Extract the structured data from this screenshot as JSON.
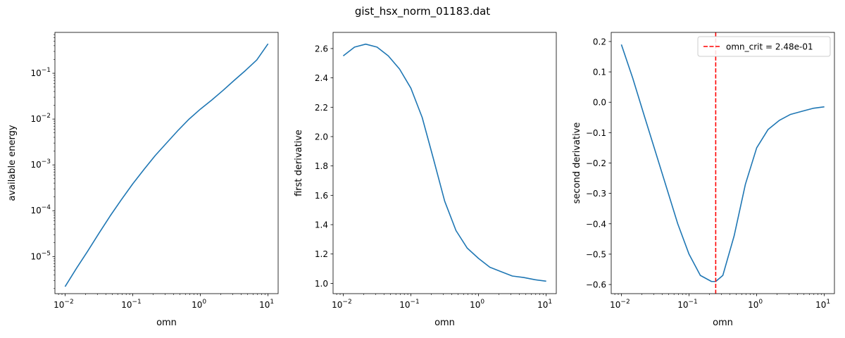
{
  "figure": {
    "suptitle": "gist_hsx_norm_01183.dat"
  },
  "chart_data": [
    {
      "type": "line",
      "xlabel": "omn",
      "ylabel": "available energy",
      "xscale": "log",
      "yscale": "log",
      "xlim": [
        0.00708,
        14.1
      ],
      "ylim": [
        1.55e-06,
        0.78
      ],
      "xticks": [
        {
          "value": 0.01,
          "base": "10",
          "exp": "−2"
        },
        {
          "value": 0.1,
          "base": "10",
          "exp": "−1"
        },
        {
          "value": 1,
          "base": "10",
          "exp": "0"
        },
        {
          "value": 10,
          "base": "10",
          "exp": "1"
        }
      ],
      "yticks": [
        {
          "value": 1e-05,
          "base": "10",
          "exp": "−5"
        },
        {
          "value": 0.0001,
          "base": "10",
          "exp": "−4"
        },
        {
          "value": 0.001,
          "base": "10",
          "exp": "−3"
        },
        {
          "value": 0.01,
          "base": "10",
          "exp": "−2"
        },
        {
          "value": 0.1,
          "base": "10",
          "exp": "−1"
        }
      ],
      "series": [
        {
          "color": "#1f77b4",
          "x": [
            0.01,
            0.0147,
            0.0215,
            0.0316,
            0.0464,
            0.0681,
            0.1,
            0.147,
            0.215,
            0.316,
            0.464,
            0.681,
            1.0,
            1.47,
            2.15,
            3.16,
            4.64,
            6.81,
            10.0
          ],
          "y": [
            2.2e-06,
            5.5e-06,
            1.3e-05,
            3.2e-05,
            7.7e-05,
            0.000175,
            0.000385,
            0.0008,
            0.0016,
            0.003,
            0.0056,
            0.01,
            0.0165,
            0.026,
            0.042,
            0.07,
            0.115,
            0.195,
            0.44
          ]
        }
      ]
    },
    {
      "type": "line",
      "xlabel": "omn",
      "ylabel": "first derivative",
      "xscale": "log",
      "yscale": "linear",
      "xlim": [
        0.00708,
        14.1
      ],
      "ylim": [
        0.93,
        2.71
      ],
      "xticks": [
        {
          "value": 0.01,
          "base": "10",
          "exp": "−2"
        },
        {
          "value": 0.1,
          "base": "10",
          "exp": "−1"
        },
        {
          "value": 1,
          "base": "10",
          "exp": "0"
        },
        {
          "value": 10,
          "base": "10",
          "exp": "1"
        }
      ],
      "yticks": [
        {
          "value": 1.0,
          "label": "1.0"
        },
        {
          "value": 1.2,
          "label": "1.2"
        },
        {
          "value": 1.4,
          "label": "1.4"
        },
        {
          "value": 1.6,
          "label": "1.6"
        },
        {
          "value": 1.8,
          "label": "1.8"
        },
        {
          "value": 2.0,
          "label": "2.0"
        },
        {
          "value": 2.2,
          "label": "2.2"
        },
        {
          "value": 2.4,
          "label": "2.4"
        },
        {
          "value": 2.6,
          "label": "2.6"
        }
      ],
      "series": [
        {
          "color": "#1f77b4",
          "x": [
            0.01,
            0.0147,
            0.0215,
            0.0316,
            0.0464,
            0.0681,
            0.1,
            0.147,
            0.215,
            0.316,
            0.464,
            0.681,
            1.0,
            1.47,
            2.15,
            3.16,
            4.64,
            6.81,
            10.0
          ],
          "y": [
            2.55,
            2.61,
            2.63,
            2.61,
            2.55,
            2.46,
            2.33,
            2.13,
            1.85,
            1.56,
            1.36,
            1.24,
            1.17,
            1.11,
            1.08,
            1.05,
            1.04,
            1.025,
            1.015
          ]
        }
      ]
    },
    {
      "type": "line",
      "xlabel": "omn",
      "ylabel": "second derivative",
      "xscale": "log",
      "yscale": "linear",
      "xlim": [
        0.00708,
        14.1
      ],
      "ylim": [
        -0.63,
        0.23
      ],
      "xticks": [
        {
          "value": 0.01,
          "base": "10",
          "exp": "−2"
        },
        {
          "value": 0.1,
          "base": "10",
          "exp": "−1"
        },
        {
          "value": 1,
          "base": "10",
          "exp": "0"
        },
        {
          "value": 10,
          "base": "10",
          "exp": "1"
        }
      ],
      "yticks": [
        {
          "value": -0.6,
          "label": "−0.6"
        },
        {
          "value": -0.5,
          "label": "−0.5"
        },
        {
          "value": -0.4,
          "label": "−0.4"
        },
        {
          "value": -0.3,
          "label": "−0.3"
        },
        {
          "value": -0.2,
          "label": "−0.2"
        },
        {
          "value": -0.1,
          "label": "−0.1"
        },
        {
          "value": 0.0,
          "label": "0.0"
        },
        {
          "value": 0.1,
          "label": "0.1"
        },
        {
          "value": 0.2,
          "label": "0.2"
        }
      ],
      "series": [
        {
          "color": "#1f77b4",
          "x": [
            0.01,
            0.0147,
            0.0215,
            0.0316,
            0.0464,
            0.0681,
            0.1,
            0.147,
            0.215,
            0.248,
            0.316,
            0.464,
            0.681,
            1.0,
            1.47,
            2.15,
            3.16,
            4.64,
            6.81,
            10.0
          ],
          "y": [
            0.19,
            0.08,
            -0.04,
            -0.16,
            -0.28,
            -0.4,
            -0.5,
            -0.57,
            -0.59,
            -0.59,
            -0.57,
            -0.44,
            -0.27,
            -0.15,
            -0.09,
            -0.06,
            -0.04,
            -0.03,
            -0.02,
            -0.015
          ]
        }
      ],
      "vline": {
        "x": 0.248,
        "color": "#ff0000",
        "label": "omn_crit = 2.48e-01"
      },
      "legend": {
        "position": "top-right",
        "entries": [
          "omn_crit = 2.48e-01"
        ]
      }
    }
  ]
}
